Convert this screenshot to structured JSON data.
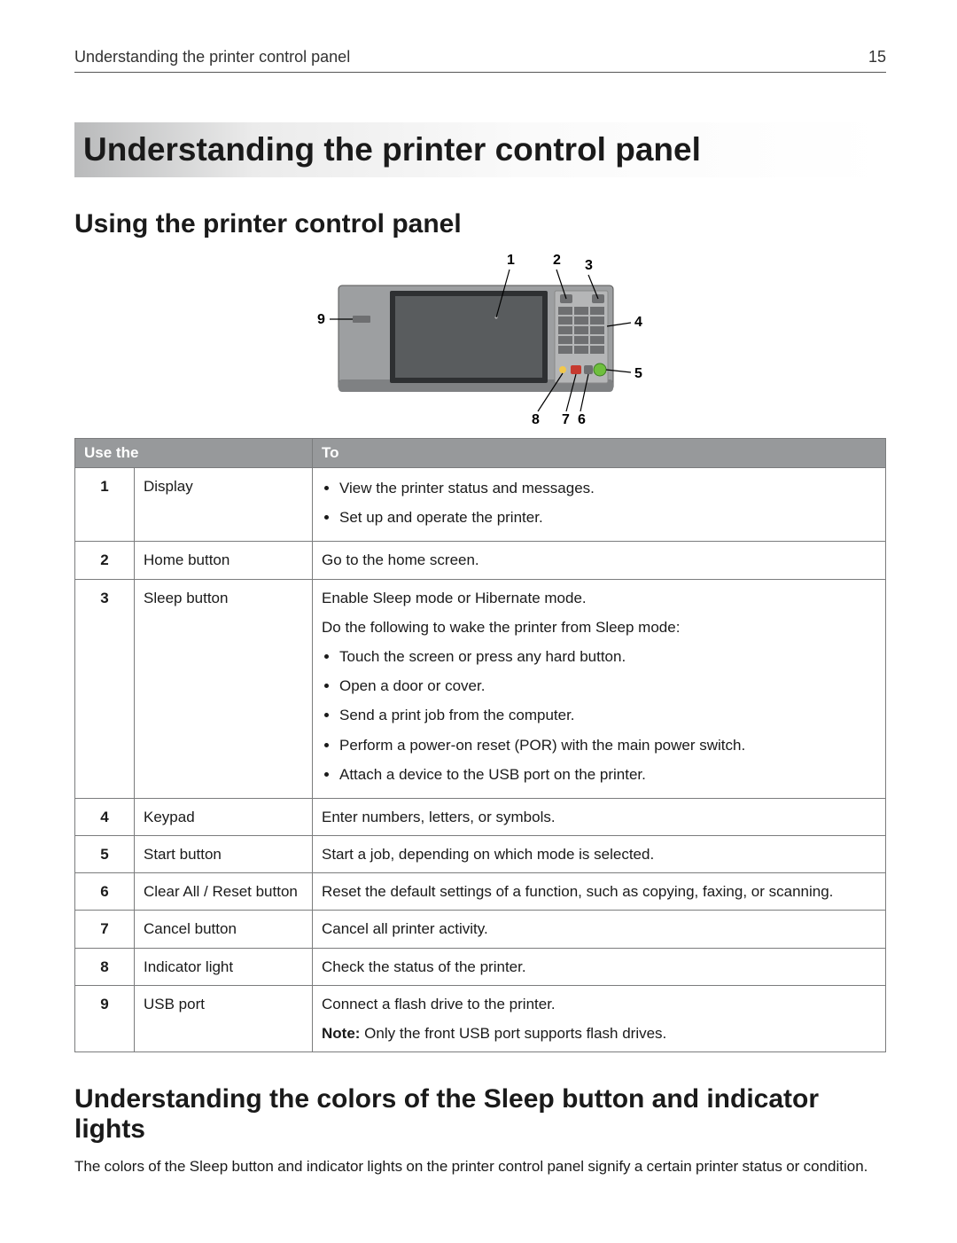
{
  "page": {
    "running_header": "Understanding the printer control panel",
    "page_number": "15",
    "main_title": "Understanding the printer control panel",
    "section1_title": "Using the printer control panel",
    "section2_title": "Understanding the colors of the Sleep button and indicator lights",
    "section2_body": "The colors of the Sleep button and indicator lights on the printer control panel signify a certain printer status or condition."
  },
  "diagram": {
    "callouts": [
      "1",
      "2",
      "3",
      "4",
      "5",
      "6",
      "7",
      "8",
      "9"
    ],
    "colors": {
      "panel_body": "#9d9fa1",
      "panel_body_dark": "#7f8183",
      "screen_outer": "#2e3032",
      "screen_inner": "#595c5e",
      "keypad_area": "#b5b6b7",
      "key": "#6e6f71",
      "start_button": "#6fbf3e",
      "led_yellow": "#f2c84b",
      "led_red": "#c63a2f"
    }
  },
  "table": {
    "headers": {
      "col1": "Use the",
      "col2": "To"
    },
    "rows": [
      {
        "num": "1",
        "name": "Display",
        "desc_type": "list",
        "desc_items": [
          "View the printer status and messages.",
          "Set up and operate the printer."
        ]
      },
      {
        "num": "2",
        "name": "Home button",
        "desc_type": "text",
        "desc_text": "Go to the home screen."
      },
      {
        "num": "3",
        "name": "Sleep button",
        "desc_type": "sleep",
        "lead1": "Enable Sleep mode or Hibernate mode.",
        "lead2": "Do the following to wake the printer from Sleep mode:",
        "desc_items": [
          "Touch the screen or press any hard button.",
          "Open a door or cover.",
          "Send a print job from the computer.",
          "Perform a power-on reset (POR) with the main power switch.",
          "Attach a device to the USB port on the printer."
        ]
      },
      {
        "num": "4",
        "name": "Keypad",
        "desc_type": "text",
        "desc_text": "Enter numbers, letters, or symbols."
      },
      {
        "num": "5",
        "name": "Start button",
        "desc_type": "text",
        "desc_text": "Start a job, depending on which mode is selected."
      },
      {
        "num": "6",
        "name": "Clear All / Reset button",
        "desc_type": "text",
        "desc_text": "Reset the default settings of a function, such as copying, faxing, or scanning."
      },
      {
        "num": "7",
        "name": "Cancel button",
        "desc_type": "text",
        "desc_text": "Cancel all printer activity."
      },
      {
        "num": "8",
        "name": "Indicator light",
        "desc_type": "text",
        "desc_text": "Check the status of the printer."
      },
      {
        "num": "9",
        "name": "USB port",
        "desc_type": "note",
        "desc_text": "Connect a flash drive to the printer.",
        "note_label": "Note:",
        "note_text": " Only the front USB port supports flash drives."
      }
    ]
  }
}
